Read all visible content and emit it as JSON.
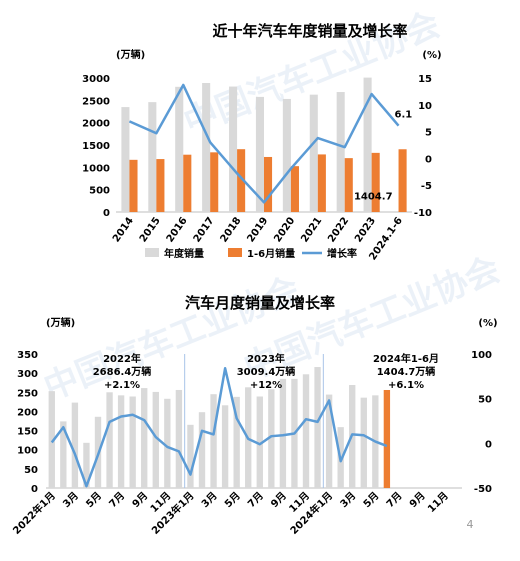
{
  "page_number": "4",
  "watermark": "中国汽车工业协会",
  "colors": {
    "gray_bar": "#d9d9d9",
    "orange_bar": "#ed7d31",
    "line_blue": "#5b9bd5",
    "axis": "#bfbfbf",
    "divider": "#a9c4e8"
  },
  "chart_data": [
    {
      "type": "bar",
      "title": "近十年汽车年度销量及增长率",
      "left_unit": "(万辆)",
      "right_unit": "(%)",
      "categories": [
        "2014",
        "2015",
        "2016",
        "2017",
        "2018",
        "2019",
        "2020",
        "2021",
        "2022",
        "2023",
        "2024.1-6"
      ],
      "ylim_left": [
        0,
        3000
      ],
      "yticks_left": [
        "0",
        "500",
        "1000",
        "1500",
        "2000",
        "2500",
        "3000"
      ],
      "ylim_right": [
        -10,
        15
      ],
      "yticks_right": [
        "-10",
        "-5",
        "0",
        "5",
        "10",
        "15"
      ],
      "series": [
        {
          "name": "年度销量",
          "type": "bar",
          "values": [
            2349,
            2460,
            2803,
            2888,
            2808,
            2577,
            2531,
            2627,
            2686,
            3009,
            null
          ]
        },
        {
          "name": "1-6月销量",
          "type": "bar",
          "values": [
            1168,
            1185,
            1283,
            1336,
            1406,
            1232,
            1026,
            1289,
            1206,
            1324,
            1404.7
          ]
        },
        {
          "name": "增长率",
          "type": "line",
          "axis": "right",
          "values": [
            6.9,
            4.7,
            13.7,
            3.0,
            -2.8,
            -8.2,
            -1.9,
            3.8,
            2.1,
            12.0,
            6.1
          ]
        }
      ],
      "data_labels": [
        "6.1",
        "1404.7"
      ],
      "legend_position": "bottom"
    },
    {
      "type": "bar",
      "title": "汽车月度销量及增长率",
      "left_unit": "(万辆)",
      "right_unit": "(%)",
      "categories": [
        "2022年1月",
        "2月",
        "3月",
        "4月",
        "5月",
        "6月",
        "7月",
        "8月",
        "9月",
        "10月",
        "11月",
        "12月",
        "2023年1月",
        "2月",
        "3月",
        "4月",
        "5月",
        "6月",
        "7月",
        "8月",
        "9月",
        "10月",
        "11月",
        "12月",
        "2024年1月",
        "2月",
        "3月",
        "4月",
        "5月",
        "6月",
        "7月",
        "8月",
        "9月",
        "10月",
        "11月",
        "12月"
      ],
      "x_tick_labels": [
        "2022年1月",
        "3月",
        "5月",
        "7月",
        "9月",
        "11月",
        "2023年1月",
        "3月",
        "5月",
        "7月",
        "9月",
        "11月",
        "2024年1月",
        "3月",
        "5月",
        "7月",
        "9月",
        "11月"
      ],
      "ylim_left": [
        0,
        350
      ],
      "yticks_left": [
        "0",
        "50",
        "100",
        "150",
        "200",
        "250",
        "300",
        "350"
      ],
      "ylim_right": [
        -50,
        100
      ],
      "yticks_right": [
        "-50",
        "0",
        "50",
        "100"
      ],
      "series": [
        {
          "name": "月度销量",
          "type": "bar",
          "values": [
            253,
            174,
            223,
            118,
            186,
            250,
            242,
            239,
            261,
            251,
            233,
            256,
            165,
            198,
            245,
            216,
            238,
            263,
            239,
            258,
            285,
            285,
            297,
            316,
            244,
            159,
            269,
            236,
            242,
            256,
            null,
            null,
            null,
            null,
            null,
            null
          ]
        },
        {
          "name": "增长率",
          "type": "line",
          "axis": "right",
          "values": [
            1,
            18,
            -12,
            -48,
            -13,
            24,
            30,
            32,
            26,
            7,
            -4,
            -9,
            -35,
            14,
            10,
            84,
            28,
            5,
            -1,
            8,
            9,
            11,
            27,
            24,
            48,
            -20,
            10,
            9,
            2,
            -3,
            null,
            null,
            null,
            null,
            null,
            null
          ]
        }
      ],
      "highlight_bar_index": 29,
      "dividers_after_index": [
        11,
        23
      ],
      "annotations": [
        {
          "lines": [
            "2022年",
            "2686.4万辆",
            "+2.1%"
          ]
        },
        {
          "lines": [
            "2023年",
            "3009.4万辆",
            "+12%"
          ]
        },
        {
          "lines": [
            "2024年1-6月",
            "1404.7万辆",
            "+6.1%"
          ]
        }
      ]
    }
  ]
}
